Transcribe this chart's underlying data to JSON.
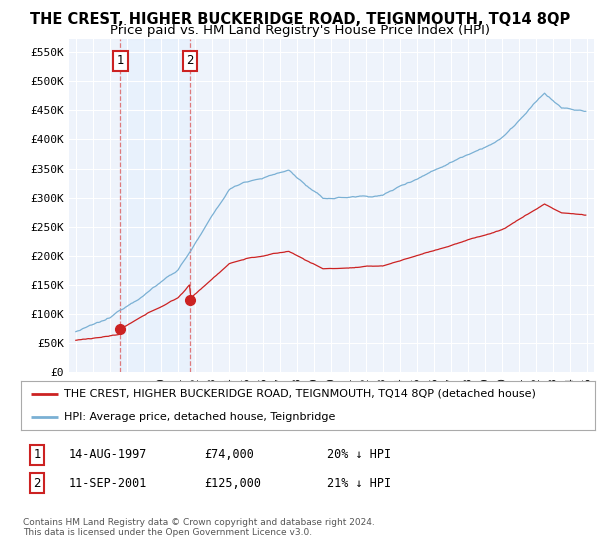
{
  "title": "THE CREST, HIGHER BUCKERIDGE ROAD, TEIGNMOUTH, TQ14 8QP",
  "subtitle": "Price paid vs. HM Land Registry's House Price Index (HPI)",
  "ylabel_ticks": [
    "£0",
    "£50K",
    "£100K",
    "£150K",
    "£200K",
    "£250K",
    "£300K",
    "£350K",
    "£400K",
    "£450K",
    "£500K",
    "£550K"
  ],
  "ytick_values": [
    0,
    50000,
    100000,
    150000,
    200000,
    250000,
    300000,
    350000,
    400000,
    450000,
    500000,
    550000
  ],
  "xlim_start": 1994.6,
  "xlim_end": 2025.4,
  "ylim_min": 0,
  "ylim_max": 572000,
  "transaction1_date": 1997.62,
  "transaction1_price": 74000,
  "transaction1_label": "1",
  "transaction2_date": 2001.71,
  "transaction2_price": 125000,
  "transaction2_label": "2",
  "hpi_color": "#7ab0d4",
  "price_color": "#cc2222",
  "vline_color": "#dd6666",
  "shade_color": "#ddeeff",
  "transaction_dot_color": "#cc2222",
  "background_color": "#eef3fb",
  "grid_color": "#ffffff",
  "legend_entry1": "THE CREST, HIGHER BUCKERIDGE ROAD, TEIGNMOUTH, TQ14 8QP (detached house)",
  "legend_entry2": "HPI: Average price, detached house, Teignbridge",
  "table_row1": [
    "1",
    "14-AUG-1997",
    "£74,000",
    "20% ↓ HPI"
  ],
  "table_row2": [
    "2",
    "11-SEP-2001",
    "£125,000",
    "21% ↓ HPI"
  ],
  "footer": "Contains HM Land Registry data © Crown copyright and database right 2024.\nThis data is licensed under the Open Government Licence v3.0.",
  "title_fontsize": 10.5,
  "subtitle_fontsize": 9.5
}
